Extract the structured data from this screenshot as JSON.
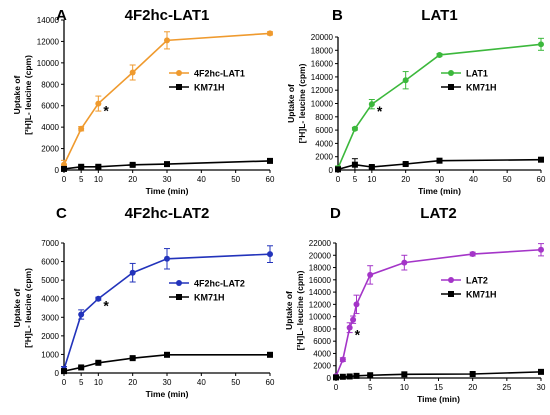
{
  "chart_data": [
    {
      "type": "line",
      "panel_letter": "A",
      "title": "4F2hc-LAT1",
      "xlabel": "Time (min)",
      "ylabel_line1": "Uptake of",
      "ylabel_line2": "[³H]L- leucine (cpm)",
      "xlim": [
        0,
        60
      ],
      "ylim": [
        0,
        14000
      ],
      "xticks": [
        0,
        5,
        10,
        20,
        30,
        40,
        50,
        60
      ],
      "yticks": [
        0,
        2000,
        4000,
        6000,
        8000,
        10000,
        12000,
        14000
      ],
      "legend_position": "right",
      "annotations": [
        {
          "text": "*",
          "x": 10,
          "y": 6200
        }
      ],
      "series": [
        {
          "name": "4F2hc-LAT1",
          "color": "#ef9a2e",
          "marker": "circle",
          "x": [
            0,
            5,
            10,
            20,
            30,
            60
          ],
          "y": [
            500,
            3850,
            6200,
            9100,
            12100,
            12750
          ],
          "err": [
            400,
            200,
            700,
            700,
            800,
            150
          ]
        },
        {
          "name": "KM71H",
          "color": "#000000",
          "marker": "square",
          "x": [
            0,
            5,
            10,
            20,
            30,
            60
          ],
          "y": [
            100,
            300,
            300,
            480,
            550,
            850
          ],
          "err": [
            100,
            150,
            150,
            100,
            100,
            100
          ]
        }
      ]
    },
    {
      "type": "line",
      "panel_letter": "B",
      "title": "LAT1",
      "xlabel": "Time (min)",
      "ylabel_line1": "Uptake of",
      "ylabel_line2": "[³H]L- leucine (cpm)",
      "xlim": [
        0,
        60
      ],
      "ylim": [
        0,
        20000
      ],
      "xticks": [
        0,
        5,
        10,
        20,
        30,
        40,
        50,
        60
      ],
      "yticks": [
        0,
        2000,
        4000,
        6000,
        8000,
        10000,
        12000,
        14000,
        16000,
        18000,
        20000
      ],
      "legend_position": "right",
      "annotations": [
        {
          "text": "*",
          "x": 10,
          "y": 9900
        }
      ],
      "series": [
        {
          "name": "LAT1",
          "color": "#3cb83c",
          "marker": "circle",
          "x": [
            0,
            5,
            10,
            20,
            30,
            60
          ],
          "y": [
            300,
            6200,
            9900,
            13500,
            17300,
            18900
          ],
          "err": [
            300,
            200,
            700,
            1300,
            200,
            900
          ]
        },
        {
          "name": "KM71H",
          "color": "#000000",
          "marker": "square",
          "x": [
            0,
            5,
            10,
            20,
            30,
            60
          ],
          "y": [
            100,
            800,
            450,
            900,
            1400,
            1550
          ],
          "err": [
            100,
            900,
            200,
            200,
            100,
            100
          ]
        }
      ]
    },
    {
      "type": "line",
      "panel_letter": "C",
      "title": "4F2hc-LAT2",
      "xlabel": "Time (min)",
      "ylabel_line1": "Uptake of",
      "ylabel_line2": "[³H]L- leucine (cpm)",
      "xlim": [
        0,
        60
      ],
      "ylim": [
        0,
        7000
      ],
      "xticks": [
        0,
        5,
        10,
        20,
        30,
        40,
        50,
        60
      ],
      "yticks": [
        0,
        1000,
        2000,
        3000,
        4000,
        5000,
        6000,
        7000
      ],
      "legend_position": "right",
      "annotations": [
        {
          "text": "*",
          "x": 10,
          "y": 4000
        }
      ],
      "series": [
        {
          "name": "4F2hc-LAT2",
          "color": "#2233bb",
          "marker": "circle",
          "x": [
            0,
            5,
            10,
            20,
            30,
            60
          ],
          "y": [
            200,
            3150,
            4000,
            5400,
            6150,
            6400
          ],
          "err": [
            150,
            250,
            80,
            500,
            550,
            450
          ]
        },
        {
          "name": "KM71H",
          "color": "#000000",
          "marker": "square",
          "x": [
            0,
            5,
            10,
            20,
            30,
            60
          ],
          "y": [
            100,
            300,
            550,
            800,
            980,
            980
          ],
          "err": [
            50,
            50,
            50,
            50,
            50,
            50
          ]
        }
      ]
    },
    {
      "type": "line",
      "panel_letter": "D",
      "title": "LAT2",
      "xlabel": "Time (min)",
      "ylabel_line1": "Uptake of",
      "ylabel_line2": "[³H]L- leucine (cpm)",
      "xlim": [
        0,
        30
      ],
      "ylim": [
        0,
        22000
      ],
      "xticks": [
        0,
        5,
        10,
        15,
        20,
        25,
        30
      ],
      "yticks": [
        0,
        2000,
        4000,
        6000,
        8000,
        10000,
        12000,
        14000,
        16000,
        18000,
        20000,
        22000
      ],
      "legend_position": "right",
      "annotations": [
        {
          "text": "*",
          "x": 2,
          "y": 8200
        }
      ],
      "series": [
        {
          "name": "LAT2",
          "color": "#a435c8",
          "marker": "circle",
          "x": [
            0,
            1,
            2,
            2.5,
            3,
            5,
            10,
            20,
            30
          ],
          "y": [
            300,
            3000,
            8200,
            9500,
            12000,
            16800,
            18800,
            20200,
            20900
          ],
          "err": [
            200,
            300,
            800,
            600,
            1500,
            1500,
            1200,
            300,
            1000
          ]
        },
        {
          "name": "KM71H",
          "color": "#000000",
          "marker": "square",
          "x": [
            0,
            1,
            2,
            3,
            5,
            10,
            20,
            30
          ],
          "y": [
            100,
            200,
            250,
            350,
            450,
            600,
            650,
            1000
          ],
          "err": [
            50,
            50,
            50,
            50,
            50,
            50,
            50,
            50
          ]
        }
      ]
    }
  ]
}
